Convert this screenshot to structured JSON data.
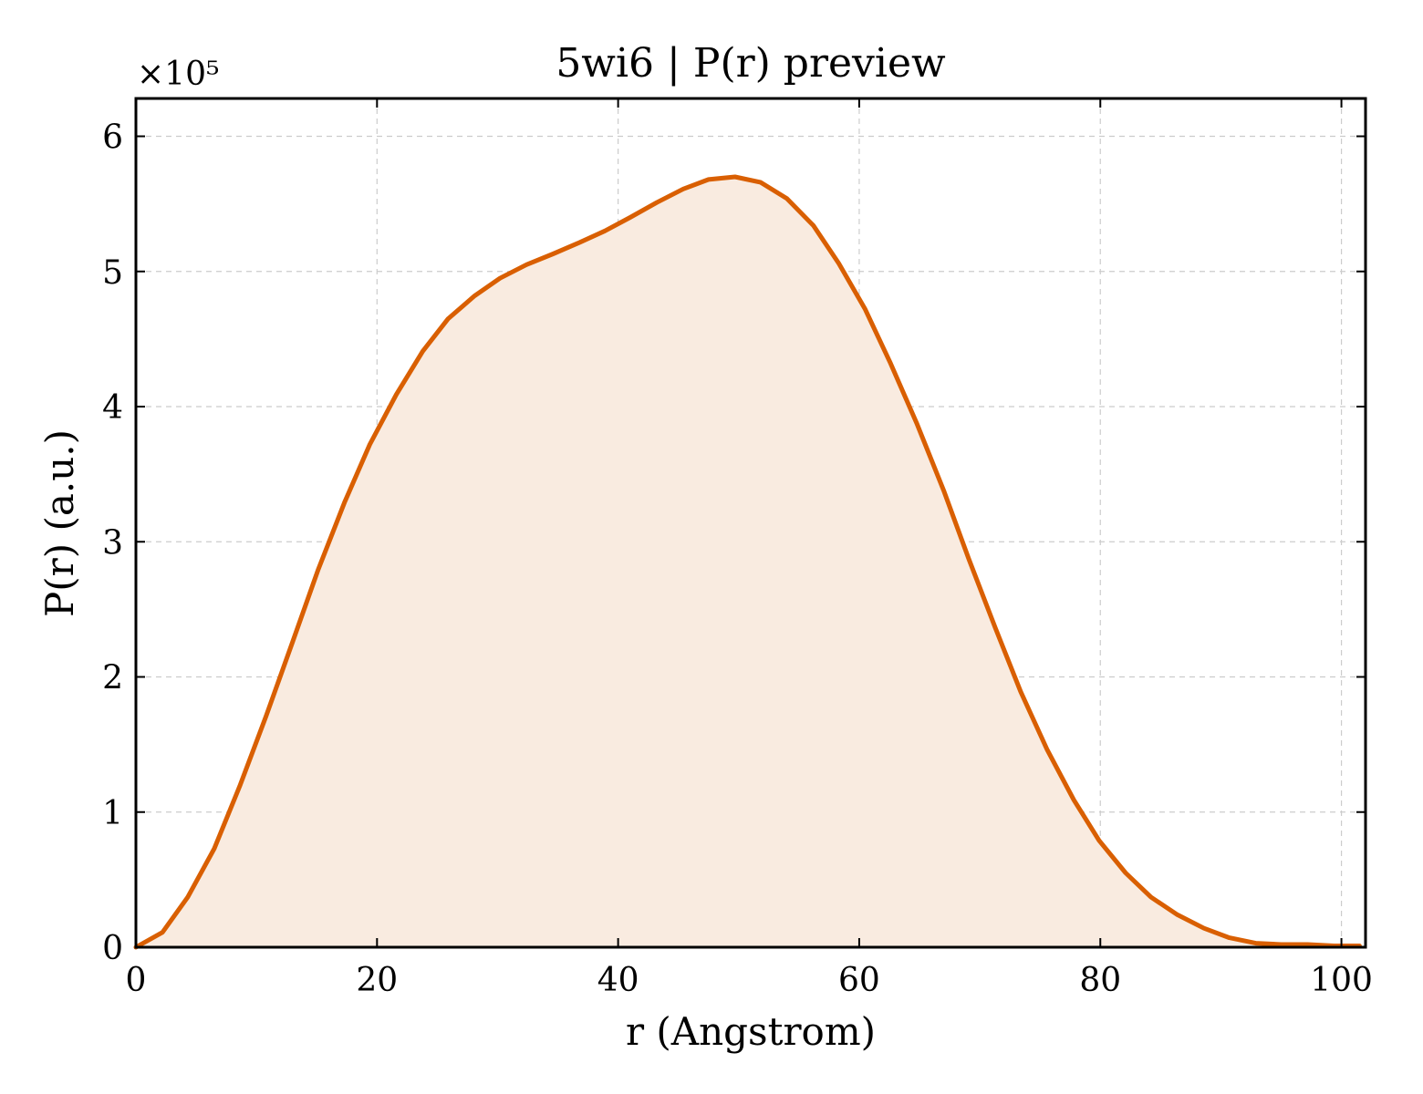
{
  "chart_data": {
    "type": "area",
    "title": "5wi6 | P(r) preview",
    "xlabel": "r (Angstrom)",
    "ylabel": "P(r) (a.u.)",
    "y_offset_label": "×10⁵",
    "xlim": [
      0,
      102
    ],
    "ylim": [
      0,
      6.28
    ],
    "x_ticks": [
      0,
      20,
      40,
      60,
      80,
      100
    ],
    "x_tick_labels": [
      "0",
      "20",
      "40",
      "60",
      "80",
      "100"
    ],
    "y_ticks": [
      0,
      1,
      2,
      3,
      4,
      5,
      6
    ],
    "y_tick_labels": [
      "0",
      "1",
      "2",
      "3",
      "4",
      "5",
      "6"
    ],
    "grid": true,
    "line_color": "#d95f02",
    "fill_color": "#f9ebe0",
    "series": [
      {
        "x": [
          0,
          2.2,
          4.3,
          6.5,
          8.6,
          10.8,
          13.0,
          15.1,
          17.3,
          19.4,
          21.6,
          23.8,
          25.9,
          28.1,
          30.2,
          32.4,
          34.6,
          36.7,
          38.9,
          41.0,
          43.2,
          45.4,
          47.5,
          49.7,
          51.8,
          54.0,
          56.2,
          58.3,
          60.5,
          62.6,
          64.8,
          67.0,
          69.1,
          71.3,
          73.4,
          75.6,
          77.8,
          79.9,
          82.1,
          84.2,
          86.4,
          88.6,
          90.7,
          92.9,
          95.0,
          97.2,
          99.4,
          101.5
        ],
        "y": [
          0.0,
          0.11,
          0.37,
          0.73,
          1.19,
          1.71,
          2.26,
          2.79,
          3.29,
          3.72,
          4.09,
          4.41,
          4.65,
          4.82,
          4.95,
          5.05,
          5.13,
          5.21,
          5.3,
          5.4,
          5.51,
          5.61,
          5.68,
          5.7,
          5.66,
          5.54,
          5.34,
          5.06,
          4.72,
          4.32,
          3.87,
          3.38,
          2.87,
          2.36,
          1.89,
          1.46,
          1.09,
          0.79,
          0.55,
          0.37,
          0.24,
          0.14,
          0.07,
          0.03,
          0.02,
          0.02,
          0.01,
          0.01
        ]
      }
    ]
  }
}
